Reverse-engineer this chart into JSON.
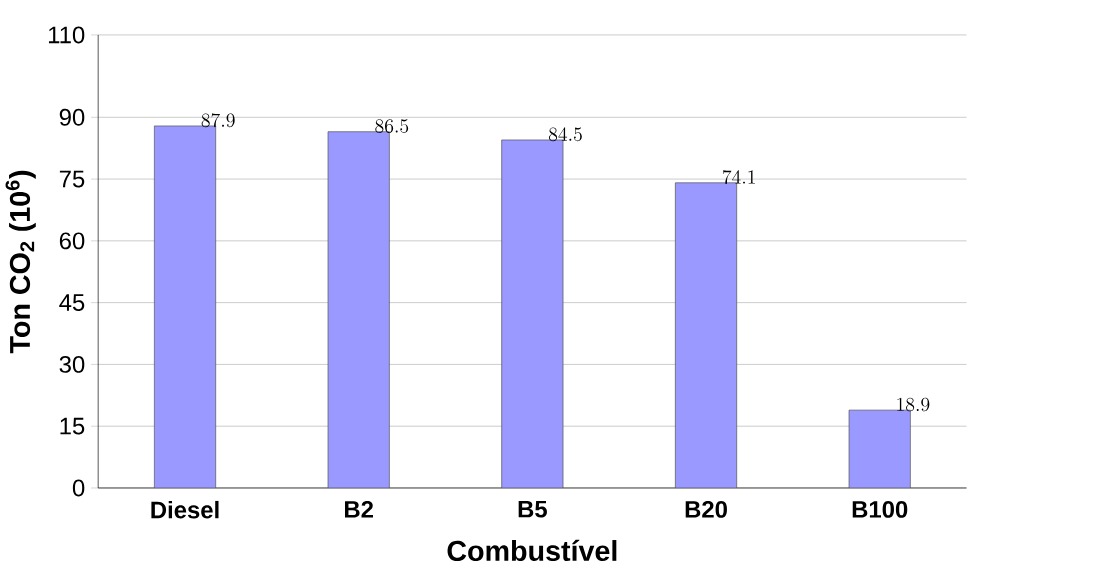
{
  "chart_data": {
    "type": "bar",
    "xlabel": "Combustível",
    "ylabel": "Ton CO$_{2}$ (10$^{6}$)",
    "categories": [
      "Diesel",
      "B2",
      "B5",
      "B20",
      "B100"
    ],
    "values": [
      87.9,
      86.5,
      84.5,
      74.1,
      18.9
    ],
    "color": "#9999ff",
    "data_labels": true,
    "grid": "y",
    "ylim": [
      0,
      110
    ],
    "yticks": [
      0,
      15,
      30,
      45,
      60,
      75,
      90,
      110
    ]
  }
}
